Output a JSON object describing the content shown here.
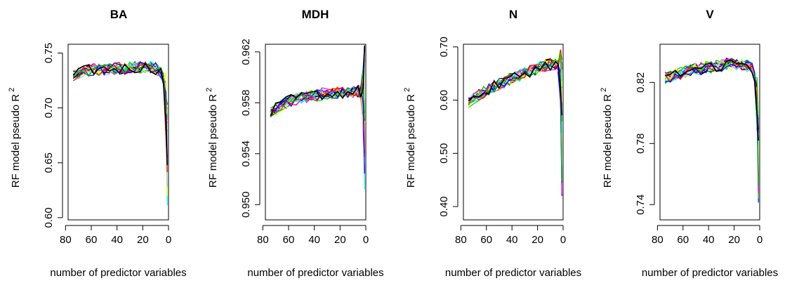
{
  "chart_data": [
    {
      "type": "line",
      "title": "BA",
      "xlabel": "number of predictor variables",
      "ylabel": "RF model pseudo R",
      "ylabel_superscript": "2",
      "xlim": [
        78,
        0
      ],
      "ylim": [
        0.598,
        0.758
      ],
      "x_ticks": [
        80,
        60,
        40,
        20,
        0
      ],
      "x_tick_labels": [
        "80",
        "60",
        "40",
        "20",
        "0"
      ],
      "y_ticks": [
        0.6,
        0.65,
        0.7,
        0.75
      ],
      "y_tick_labels": [
        "0.60",
        "0.65",
        "0.70",
        "0.75"
      ],
      "grid": false,
      "legend": "none",
      "series_count": 20,
      "x": [
        74,
        70,
        66,
        62,
        58,
        54,
        50,
        46,
        42,
        38,
        34,
        30,
        26,
        22,
        18,
        14,
        10,
        6,
        4,
        2,
        1
      ],
      "series_summary": {
        "mean": [
          0.729,
          0.731,
          0.733,
          0.734,
          0.735,
          0.735,
          0.735,
          0.736,
          0.736,
          0.736,
          0.736,
          0.737,
          0.737,
          0.737,
          0.737,
          0.737,
          0.736,
          0.733,
          0.726,
          0.705,
          0.66
        ],
        "min_endpoint": 0.598,
        "max_value": 0.756
      }
    },
    {
      "type": "line",
      "title": "MDH",
      "xlabel": "number of predictor variables",
      "ylabel": "RF model pseudo R",
      "ylabel_superscript": "2",
      "xlim": [
        78,
        0
      ],
      "ylim": [
        0.9488,
        0.9626
      ],
      "x_ticks": [
        80,
        60,
        40,
        20,
        0
      ],
      "x_tick_labels": [
        "80",
        "60",
        "40",
        "20",
        "0"
      ],
      "y_ticks": [
        0.95,
        0.954,
        0.958,
        0.962
      ],
      "y_tick_labels": [
        "0.950",
        "0.954",
        "0.958",
        "0.962"
      ],
      "grid": false,
      "legend": "none",
      "series_count": 20,
      "x": [
        74,
        70,
        66,
        62,
        58,
        54,
        50,
        46,
        42,
        38,
        34,
        30,
        26,
        22,
        18,
        14,
        10,
        6,
        4,
        2,
        1
      ],
      "series_summary": {
        "mean": [
          0.9572,
          0.9575,
          0.9578,
          0.958,
          0.9582,
          0.9583,
          0.9584,
          0.9585,
          0.9586,
          0.9586,
          0.9587,
          0.9587,
          0.9587,
          0.9588,
          0.9588,
          0.9588,
          0.9589,
          0.9589,
          0.9588,
          0.9585,
          0.9578
        ],
        "min_endpoint": 0.9491,
        "max_value": 0.9625
      }
    },
    {
      "type": "line",
      "title": "N",
      "xlabel": "number of predictor variables",
      "ylabel": "RF model pseudo R",
      "ylabel_superscript": "2",
      "xlim": [
        78,
        0
      ],
      "ylim": [
        0.375,
        0.705
      ],
      "x_ticks": [
        80,
        60,
        40,
        20,
        0
      ],
      "x_tick_labels": [
        "80",
        "60",
        "40",
        "20",
        "0"
      ],
      "y_ticks": [
        0.4,
        0.5,
        0.6,
        0.7
      ],
      "y_tick_labels": [
        "0.40",
        "0.50",
        "0.60",
        "0.70"
      ],
      "grid": false,
      "legend": "none",
      "series_count": 20,
      "x": [
        74,
        70,
        66,
        62,
        58,
        54,
        50,
        46,
        42,
        38,
        34,
        30,
        26,
        22,
        18,
        14,
        10,
        6,
        4,
        2,
        1
      ],
      "series_summary": {
        "mean": [
          0.596,
          0.603,
          0.609,
          0.615,
          0.62,
          0.625,
          0.63,
          0.634,
          0.639,
          0.643,
          0.647,
          0.651,
          0.655,
          0.658,
          0.662,
          0.665,
          0.667,
          0.668,
          0.664,
          0.64,
          0.55
        ],
        "min_endpoint": 0.385,
        "max_value": 0.695
      }
    },
    {
      "type": "line",
      "title": "V",
      "xlabel": "number of predictor variables",
      "ylabel": "RF model pseudo R",
      "ylabel_superscript": "2",
      "xlim": [
        78,
        0
      ],
      "ylim": [
        0.73,
        0.845
      ],
      "x_ticks": [
        80,
        60,
        40,
        20,
        0
      ],
      "x_tick_labels": [
        "80",
        "60",
        "40",
        "20",
        "0"
      ],
      "y_ticks": [
        0.74,
        0.78,
        0.82
      ],
      "y_tick_labels": [
        "0.74",
        "0.78",
        "0.82"
      ],
      "grid": false,
      "legend": "none",
      "series_count": 20,
      "x": [
        74,
        70,
        66,
        62,
        58,
        54,
        50,
        46,
        42,
        38,
        34,
        30,
        26,
        22,
        18,
        14,
        10,
        6,
        4,
        2,
        1
      ],
      "series_summary": {
        "mean": [
          0.823,
          0.824,
          0.825,
          0.826,
          0.827,
          0.828,
          0.829,
          0.829,
          0.83,
          0.83,
          0.831,
          0.831,
          0.832,
          0.832,
          0.832,
          0.832,
          0.831,
          0.829,
          0.823,
          0.805,
          0.77
        ],
        "min_endpoint": 0.733,
        "max_value": 0.84
      }
    }
  ],
  "colors": {
    "series_palette": [
      "#000000",
      "#ff0000",
      "#00cd00",
      "#0000ff",
      "#00ffff",
      "#ff00ff",
      "#ffff00",
      "#bebebe",
      "#000000",
      "#ff0000",
      "#00cd00",
      "#0000ff",
      "#00ffff",
      "#ff00ff",
      "#ffff00",
      "#bebebe",
      "#ff0000",
      "#0000ff",
      "#00cd00",
      "#000000"
    ],
    "axis": "#000000",
    "background": "#ffffff"
  }
}
